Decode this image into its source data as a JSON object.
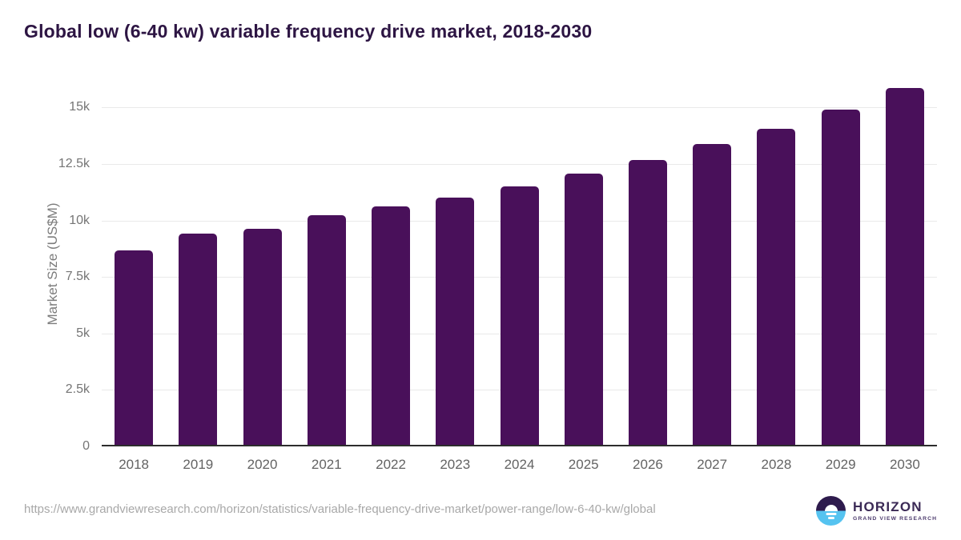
{
  "title": "Global low (6-40 kw) variable frequency drive market, 2018-2030",
  "y_axis": {
    "label": "Market Size (US$M)",
    "ticks": [
      "0",
      "2.5k",
      "5k",
      "7.5k",
      "10k",
      "12.5k",
      "15k"
    ],
    "tick_values": [
      0,
      2500,
      5000,
      7500,
      10000,
      12500,
      15000
    ]
  },
  "footer": {
    "url": "https://www.grandviewresearch.com/horizon/statistics/variable-frequency-drive-market/power-range/low-6-40-kw/global",
    "logo": {
      "name": "HORIZON",
      "subtitle": "GRAND VIEW RESEARCH"
    }
  },
  "colors": {
    "bar_color": "#49105a",
    "title_color": "#2d1543",
    "gridline_color": "#e9e9e9",
    "axis_color": "#2d2d2d",
    "ytick_color": "#757575",
    "year_color": "#636363",
    "ytitle_color": "#7c7c7c",
    "url_color": "#a8a8a8",
    "logo_dark": "#2e1b4d",
    "logo_blue": "#55c3f0",
    "logo_text_color": "#3b2a56",
    "logo_subtext_color": "#4d3c6e"
  },
  "chart_data": {
    "type": "bar",
    "categories": [
      "2018",
      "2019",
      "2020",
      "2021",
      "2022",
      "2023",
      "2024",
      "2025",
      "2026",
      "2027",
      "2028",
      "2029",
      "2030"
    ],
    "values": [
      8600,
      9350,
      9550,
      10150,
      10550,
      10950,
      11450,
      12000,
      12600,
      13300,
      14000,
      14850,
      15800
    ],
    "title": "Global low (6-40 kw) variable frequency drive market, 2018-2030",
    "xlabel": "",
    "ylabel": "Market Size (US$M)",
    "ylim": [
      0,
      16218
    ],
    "ytick_interval": 2500,
    "grid": "horizontal",
    "legend": "none",
    "bar_color": "#49105a"
  }
}
